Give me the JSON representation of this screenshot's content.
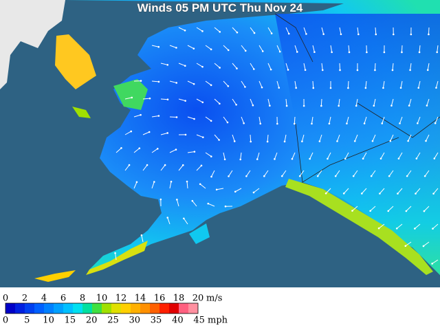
{
  "title": "Winds 05 PM UTC Thu Nov 24",
  "legend": {
    "colors": [
      "#0000c8",
      "#0020e0",
      "#0040f0",
      "#0060ff",
      "#0080ff",
      "#00a0ff",
      "#00c0ff",
      "#00e0f0",
      "#00e0a0",
      "#40e040",
      "#a0e000",
      "#e0e000",
      "#ffd000",
      "#ffb000",
      "#ff9000",
      "#ff6000",
      "#ff2000",
      "#e00000",
      "#ff6080",
      "#ff90a0"
    ],
    "ms_ticks": [
      0,
      2,
      4,
      6,
      8,
      10,
      12,
      14,
      16,
      18,
      20
    ],
    "ms_unit": "m/s",
    "mph_ticks": [
      0,
      5,
      10,
      15,
      20,
      25,
      30,
      35,
      40,
      45
    ],
    "mph_unit": "mph"
  }
}
